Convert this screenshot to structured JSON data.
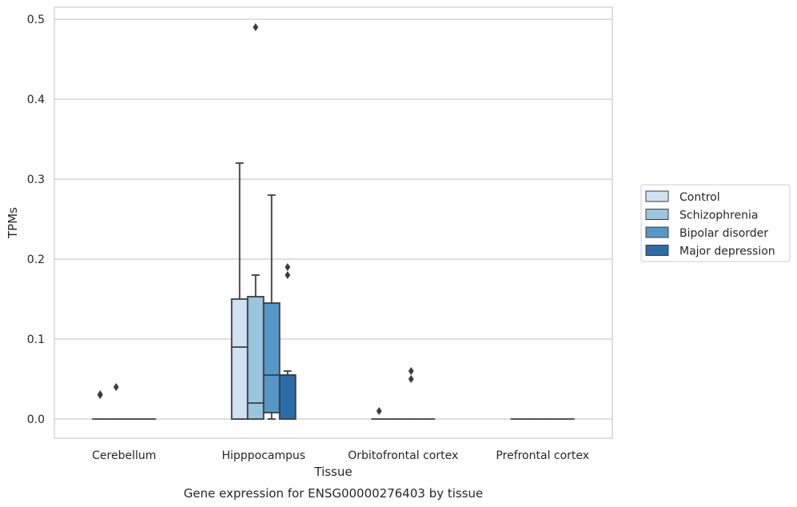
{
  "caption": "Gene expression for ENSG00000276403 by tissue",
  "chart_data": {
    "type": "box",
    "title": "",
    "xlabel": "Tissue",
    "ylabel": "TPMs",
    "ylim": [
      -0.024,
      0.515
    ],
    "yticks": [
      0.0,
      0.1,
      0.2,
      0.3,
      0.4,
      0.5
    ],
    "ytick_labels": [
      "0.0",
      "0.1",
      "0.2",
      "0.3",
      "0.4",
      "0.5"
    ],
    "grid": "horizontal",
    "legend_position": "right",
    "categories": [
      "Cerebellum",
      "Hipppocampus",
      "Orbitofrontal cortex",
      "Prefrontal cortex"
    ],
    "series": [
      {
        "name": "Control",
        "color": "#d0e1f2",
        "boxes": [
          {
            "q1": 0,
            "median": 0,
            "q3": 0,
            "whisker_low": 0,
            "whisker_high": 0,
            "outliers": [
              0.03,
              0.031
            ]
          },
          {
            "q1": 0,
            "median": 0.09,
            "q3": 0.15,
            "whisker_low": 0,
            "whisker_high": 0.32,
            "outliers": []
          },
          {
            "q1": 0,
            "median": 0,
            "q3": 0,
            "whisker_low": 0,
            "whisker_high": 0,
            "outliers": [
              0.01
            ]
          },
          {
            "q1": 0,
            "median": 0,
            "q3": 0,
            "whisker_low": 0,
            "whisker_high": 0,
            "outliers": []
          }
        ]
      },
      {
        "name": "Schizophrenia",
        "color": "#9ac5de",
        "boxes": [
          {
            "q1": 0,
            "median": 0,
            "q3": 0,
            "whisker_low": 0,
            "whisker_high": 0,
            "outliers": [
              0.04
            ]
          },
          {
            "q1": 0,
            "median": 0.02,
            "q3": 0.153,
            "whisker_low": 0,
            "whisker_high": 0.18,
            "outliers": [
              0.49
            ]
          },
          {
            "q1": 0,
            "median": 0,
            "q3": 0,
            "whisker_low": 0,
            "whisker_high": 0,
            "outliers": []
          },
          {
            "q1": 0,
            "median": 0,
            "q3": 0,
            "whisker_low": 0,
            "whisker_high": 0,
            "outliers": []
          }
        ]
      },
      {
        "name": "Bipolar disorder",
        "color": "#5598c8",
        "boxes": [
          {
            "q1": 0,
            "median": 0,
            "q3": 0,
            "whisker_low": 0,
            "whisker_high": 0,
            "outliers": []
          },
          {
            "q1": 0.008,
            "median": 0.055,
            "q3": 0.145,
            "whisker_low": 0,
            "whisker_high": 0.28,
            "outliers": []
          },
          {
            "q1": 0,
            "median": 0,
            "q3": 0,
            "whisker_low": 0,
            "whisker_high": 0,
            "outliers": [
              0.05,
              0.06
            ]
          },
          {
            "q1": 0,
            "median": 0,
            "q3": 0,
            "whisker_low": 0,
            "whisker_high": 0,
            "outliers": []
          }
        ]
      },
      {
        "name": "Major depression",
        "color": "#2b6ca8",
        "boxes": [
          {
            "q1": 0,
            "median": 0,
            "q3": 0,
            "whisker_low": 0,
            "whisker_high": 0,
            "outliers": []
          },
          {
            "q1": 0,
            "median": 0.055,
            "q3": 0.055,
            "whisker_low": 0,
            "whisker_high": 0.06,
            "outliers": [
              0.18,
              0.19
            ]
          },
          {
            "q1": 0,
            "median": 0,
            "q3": 0,
            "whisker_low": 0,
            "whisker_high": 0,
            "outliers": []
          },
          {
            "q1": 0,
            "median": 0,
            "q3": 0,
            "whisker_low": 0,
            "whisker_high": 0,
            "outliers": []
          }
        ]
      }
    ]
  }
}
